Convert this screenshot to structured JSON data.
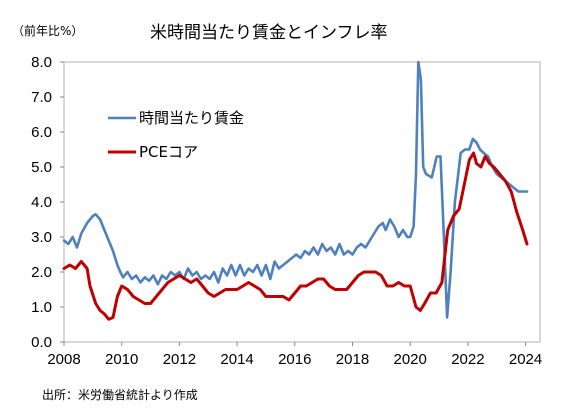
{
  "unit_label": "（前年比%）",
  "source": "出所：米労働省統計より作成",
  "chart_data": {
    "type": "line",
    "title": "米時間当たり賃金とインフレ率",
    "xlabel": "",
    "ylabel": "（前年比%）",
    "xlim": [
      2008,
      2024.5
    ],
    "ylim": [
      0,
      8
    ],
    "x_ticks": [
      "2008",
      "2010",
      "2012",
      "2014",
      "2016",
      "2018",
      "2020",
      "2022",
      "2024"
    ],
    "y_ticks": [
      "0.0",
      "1.0",
      "2.0",
      "3.0",
      "4.0",
      "5.0",
      "6.0",
      "7.0",
      "8.0"
    ],
    "grid": false,
    "legend_position": "upper-left",
    "series": [
      {
        "name": "時間当たり賃金",
        "color": "#4f81bd",
        "points": [
          [
            2008.0,
            2.9
          ],
          [
            2008.15,
            2.8
          ],
          [
            2008.3,
            3.0
          ],
          [
            2008.45,
            2.7
          ],
          [
            2008.6,
            3.1
          ],
          [
            2008.8,
            3.4
          ],
          [
            2009.0,
            3.6
          ],
          [
            2009.1,
            3.65
          ],
          [
            2009.25,
            3.5
          ],
          [
            2009.4,
            3.2
          ],
          [
            2009.55,
            2.9
          ],
          [
            2009.7,
            2.6
          ],
          [
            2009.85,
            2.2
          ],
          [
            2009.95,
            2.0
          ],
          [
            2010.05,
            1.85
          ],
          [
            2010.2,
            2.0
          ],
          [
            2010.35,
            1.8
          ],
          [
            2010.5,
            1.9
          ],
          [
            2010.65,
            1.7
          ],
          [
            2010.8,
            1.85
          ],
          [
            2010.95,
            1.75
          ],
          [
            2011.1,
            1.9
          ],
          [
            2011.25,
            1.65
          ],
          [
            2011.4,
            1.9
          ],
          [
            2011.55,
            1.8
          ],
          [
            2011.7,
            2.0
          ],
          [
            2011.85,
            1.9
          ],
          [
            2012.0,
            2.0
          ],
          [
            2012.15,
            1.8
          ],
          [
            2012.3,
            2.1
          ],
          [
            2012.45,
            1.9
          ],
          [
            2012.6,
            2.0
          ],
          [
            2012.75,
            1.8
          ],
          [
            2012.9,
            1.9
          ],
          [
            2013.05,
            1.8
          ],
          [
            2013.2,
            2.0
          ],
          [
            2013.35,
            1.7
          ],
          [
            2013.5,
            2.1
          ],
          [
            2013.65,
            1.9
          ],
          [
            2013.8,
            2.2
          ],
          [
            2013.95,
            1.9
          ],
          [
            2014.1,
            2.2
          ],
          [
            2014.25,
            1.9
          ],
          [
            2014.4,
            2.1
          ],
          [
            2014.55,
            2.0
          ],
          [
            2014.7,
            2.2
          ],
          [
            2014.85,
            1.9
          ],
          [
            2015.0,
            2.2
          ],
          [
            2015.15,
            1.8
          ],
          [
            2015.3,
            2.3
          ],
          [
            2015.45,
            2.1
          ],
          [
            2015.6,
            2.2
          ],
          [
            2015.75,
            2.3
          ],
          [
            2015.9,
            2.4
          ],
          [
            2016.05,
            2.5
          ],
          [
            2016.2,
            2.4
          ],
          [
            2016.35,
            2.6
          ],
          [
            2016.5,
            2.5
          ],
          [
            2016.65,
            2.7
          ],
          [
            2016.8,
            2.5
          ],
          [
            2016.95,
            2.8
          ],
          [
            2017.1,
            2.6
          ],
          [
            2017.25,
            2.7
          ],
          [
            2017.4,
            2.5
          ],
          [
            2017.55,
            2.8
          ],
          [
            2017.7,
            2.5
          ],
          [
            2017.85,
            2.6
          ],
          [
            2018.0,
            2.5
          ],
          [
            2018.15,
            2.7
          ],
          [
            2018.3,
            2.8
          ],
          [
            2018.45,
            2.7
          ],
          [
            2018.6,
            2.9
          ],
          [
            2018.75,
            3.1
          ],
          [
            2018.9,
            3.3
          ],
          [
            2019.05,
            3.4
          ],
          [
            2019.15,
            3.2
          ],
          [
            2019.3,
            3.5
          ],
          [
            2019.45,
            3.3
          ],
          [
            2019.6,
            3.0
          ],
          [
            2019.75,
            3.2
          ],
          [
            2019.9,
            3.0
          ],
          [
            2020.0,
            3.0
          ],
          [
            2020.12,
            3.3
          ],
          [
            2020.2,
            4.8
          ],
          [
            2020.28,
            8.0
          ],
          [
            2020.37,
            7.5
          ],
          [
            2020.45,
            5.0
          ],
          [
            2020.55,
            4.8
          ],
          [
            2020.75,
            4.7
          ],
          [
            2020.92,
            5.3
          ],
          [
            2021.05,
            5.3
          ],
          [
            2021.17,
            3.0
          ],
          [
            2021.28,
            0.7
          ],
          [
            2021.4,
            2.0
          ],
          [
            2021.55,
            4.0
          ],
          [
            2021.75,
            5.4
          ],
          [
            2021.9,
            5.5
          ],
          [
            2022.05,
            5.5
          ],
          [
            2022.17,
            5.8
          ],
          [
            2022.3,
            5.7
          ],
          [
            2022.42,
            5.5
          ],
          [
            2022.55,
            5.4
          ],
          [
            2022.7,
            5.3
          ],
          [
            2022.85,
            5.0
          ],
          [
            2023.0,
            4.8
          ],
          [
            2023.15,
            4.7
          ],
          [
            2023.3,
            4.6
          ],
          [
            2023.45,
            4.5
          ],
          [
            2023.6,
            4.4
          ],
          [
            2023.75,
            4.3
          ],
          [
            2023.9,
            4.3
          ],
          [
            2024.05,
            4.3
          ]
        ]
      },
      {
        "name": "PCEコア",
        "color": "#c00000",
        "points": [
          [
            2008.0,
            2.1
          ],
          [
            2008.2,
            2.2
          ],
          [
            2008.4,
            2.1
          ],
          [
            2008.6,
            2.3
          ],
          [
            2008.8,
            2.1
          ],
          [
            2008.9,
            1.6
          ],
          [
            2009.1,
            1.1
          ],
          [
            2009.25,
            0.9
          ],
          [
            2009.4,
            0.8
          ],
          [
            2009.55,
            0.65
          ],
          [
            2009.7,
            0.7
          ],
          [
            2009.85,
            1.3
          ],
          [
            2010.0,
            1.6
          ],
          [
            2010.2,
            1.5
          ],
          [
            2010.4,
            1.3
          ],
          [
            2010.6,
            1.2
          ],
          [
            2010.8,
            1.1
          ],
          [
            2011.0,
            1.1
          ],
          [
            2011.2,
            1.3
          ],
          [
            2011.4,
            1.5
          ],
          [
            2011.6,
            1.7
          ],
          [
            2011.8,
            1.8
          ],
          [
            2012.0,
            1.9
          ],
          [
            2012.2,
            1.8
          ],
          [
            2012.4,
            1.7
          ],
          [
            2012.6,
            1.8
          ],
          [
            2012.8,
            1.6
          ],
          [
            2013.0,
            1.4
          ],
          [
            2013.2,
            1.3
          ],
          [
            2013.4,
            1.4
          ],
          [
            2013.6,
            1.5
          ],
          [
            2013.8,
            1.5
          ],
          [
            2014.0,
            1.5
          ],
          [
            2014.2,
            1.6
          ],
          [
            2014.4,
            1.7
          ],
          [
            2014.6,
            1.6
          ],
          [
            2014.8,
            1.5
          ],
          [
            2015.0,
            1.3
          ],
          [
            2015.2,
            1.3
          ],
          [
            2015.4,
            1.3
          ],
          [
            2015.6,
            1.3
          ],
          [
            2015.8,
            1.2
          ],
          [
            2016.0,
            1.4
          ],
          [
            2016.2,
            1.6
          ],
          [
            2016.4,
            1.6
          ],
          [
            2016.6,
            1.7
          ],
          [
            2016.8,
            1.8
          ],
          [
            2017.0,
            1.8
          ],
          [
            2017.2,
            1.6
          ],
          [
            2017.4,
            1.5
          ],
          [
            2017.6,
            1.5
          ],
          [
            2017.8,
            1.5
          ],
          [
            2018.0,
            1.7
          ],
          [
            2018.2,
            1.9
          ],
          [
            2018.4,
            2.0
          ],
          [
            2018.6,
            2.0
          ],
          [
            2018.8,
            2.0
          ],
          [
            2019.0,
            1.9
          ],
          [
            2019.2,
            1.6
          ],
          [
            2019.4,
            1.6
          ],
          [
            2019.6,
            1.7
          ],
          [
            2019.8,
            1.6
          ],
          [
            2020.0,
            1.6
          ],
          [
            2020.2,
            1.0
          ],
          [
            2020.35,
            0.9
          ],
          [
            2020.5,
            1.1
          ],
          [
            2020.7,
            1.4
          ],
          [
            2020.9,
            1.4
          ],
          [
            2021.1,
            1.7
          ],
          [
            2021.3,
            3.2
          ],
          [
            2021.5,
            3.6
          ],
          [
            2021.7,
            3.8
          ],
          [
            2021.9,
            4.6
          ],
          [
            2022.05,
            5.2
          ],
          [
            2022.2,
            5.4
          ],
          [
            2022.3,
            5.1
          ],
          [
            2022.45,
            5.0
          ],
          [
            2022.6,
            5.3
          ],
          [
            2022.75,
            5.1
          ],
          [
            2022.9,
            5.0
          ],
          [
            2023.1,
            4.8
          ],
          [
            2023.3,
            4.6
          ],
          [
            2023.5,
            4.3
          ],
          [
            2023.7,
            3.7
          ],
          [
            2023.9,
            3.2
          ],
          [
            2024.05,
            2.8
          ]
        ]
      }
    ]
  }
}
